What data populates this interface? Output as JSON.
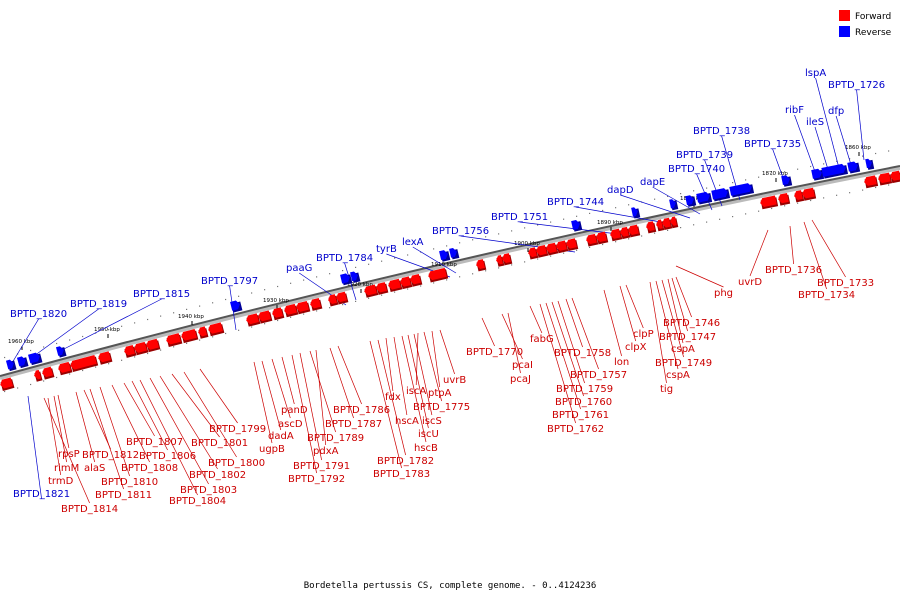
{
  "legend": {
    "forward_label": "Forward",
    "reverse_label": "Reverse",
    "forward_color": "#ff0000",
    "reverse_color": "#0000ff"
  },
  "caption": "Bordetella pertussis CS, complete genome. - 0..4124236",
  "ticks": [
    "1960 kbp",
    "1950 kbp",
    "1940 kbp",
    "1930 kbp",
    "1920 kbp",
    "1910 kbp",
    "1900 kbp",
    "1890 kbp",
    "1880 kbp",
    "1870 kbp",
    "1860 kbp"
  ],
  "reverse_genes": [
    "BPTD_1820",
    "BPTD_1819",
    "BPTD_1815",
    "BPTD_1797",
    "paaG",
    "BPTD_1784",
    "tyrB",
    "lexA",
    "BPTD_1756",
    "BPTD_1751",
    "BPTD_1744",
    "dapD",
    "dapE",
    "BPTD_1740",
    "BPTD_1739",
    "BPTD_1738",
    "BPTD_1735",
    "ribF",
    "ileS",
    "lspA",
    "dfp",
    "BPTD_1726",
    "BPTD_1821"
  ],
  "forward_genes": [
    "BPTD_1814",
    "trmD",
    "rimM",
    "rpsP",
    "alaS",
    "BPTD_1812",
    "BPTD_1811",
    "BPTD_1810",
    "BPTD_1808",
    "BPTD_1807",
    "BPTD_1806",
    "BPTD_1804",
    "BPTD_1803",
    "BPTD_1802",
    "BPTD_1801",
    "BPTD_1800",
    "BPTD_1799",
    "ugpB",
    "dadA",
    "ascD",
    "panD",
    "BPTD_1792",
    "BPTD_1791",
    "BPTD_1789",
    "pdxA",
    "BPTD_1787",
    "BPTD_1786",
    "BPTD_1783",
    "BPTD_1782",
    "fdx",
    "hscA",
    "hscB",
    "iscU",
    "iscS",
    "iscA",
    "BPTD_1775",
    "ptpA",
    "uvrB",
    "BPTD_1770",
    "pcaI",
    "pcaJ",
    "fabG",
    "BPTD_1762",
    "BPTD_1761",
    "BPTD_1760",
    "BPTD_1759",
    "BPTD_1758",
    "BPTD_1757",
    "lon",
    "clpX",
    "clpP",
    "tig",
    "cspA_1",
    "BPTD_1749",
    "cspA_2",
    "BPTD_1747",
    "BPTD_1746",
    "phg",
    "uvrD",
    "BPTD_1736",
    "BPTD_1734",
    "BPTD_1733"
  ],
  "gene_text": {
    "BPTD_1820": "BPTD_1820",
    "BPTD_1819": "BPTD_1819",
    "BPTD_1815": "BPTD_1815",
    "BPTD_1797": "BPTD_1797",
    "paaG": "paaG",
    "BPTD_1784": "BPTD_1784",
    "tyrB": "tyrB",
    "lexA": "lexA",
    "BPTD_1756": "BPTD_1756",
    "BPTD_1751": "BPTD_1751",
    "BPTD_1744": "BPTD_1744",
    "dapD": "dapD",
    "dapE": "dapE",
    "BPTD_1740": "BPTD_1740",
    "BPTD_1739": "BPTD_1739",
    "BPTD_1738": "BPTD_1738",
    "BPTD_1735": "BPTD_1735",
    "ribF": "ribF",
    "ileS": "ileS",
    "lspA": "lspA",
    "dfp": "dfp",
    "BPTD_1726": "BPTD_1726",
    "BPTD_1821": "BPTD_1821",
    "BPTD_1814": "BPTD_1814",
    "trmD": "trmD",
    "rimM": "rimM",
    "rpsP": "rpsP",
    "alaS": "alaS",
    "BPTD_1812": "BPTD_1812",
    "BPTD_1811": "BPTD_1811",
    "BPTD_1810": "BPTD_1810",
    "BPTD_1808": "BPTD_1808",
    "BPTD_1807": "BPTD_1807",
    "BPTD_1806": "BPTD_1806",
    "BPTD_1804": "BPTD_1804",
    "BPTD_1803": "BPTD_1803",
    "BPTD_1802": "BPTD_1802",
    "BPTD_1801": "BPTD_1801",
    "BPTD_1800": "BPTD_1800",
    "BPTD_1799": "BPTD_1799",
    "ugpB": "ugpB",
    "dadA": "dadA",
    "ascD": "ascD",
    "panD": "panD",
    "BPTD_1792": "BPTD_1792",
    "BPTD_1791": "BPTD_1791",
    "BPTD_1789": "BPTD_1789",
    "pdxA": "pdxA",
    "BPTD_1787": "BPTD_1787",
    "BPTD_1786": "BPTD_1786",
    "BPTD_1783": "BPTD_1783",
    "BPTD_1782": "BPTD_1782",
    "fdx": "fdx",
    "hscA": "hscA",
    "hscB": "hscB",
    "iscU": "iscU",
    "iscS": "iscS",
    "iscA": "iscA",
    "BPTD_1775": "BPTD_1775",
    "ptpA": "ptpA",
    "uvrB": "uvrB",
    "BPTD_1770": "BPTD_1770",
    "pcaI": "pcaI",
    "pcaJ": "pcaJ",
    "fabG": "fabG",
    "BPTD_1762": "BPTD_1762",
    "BPTD_1761": "BPTD_1761",
    "BPTD_1760": "BPTD_1760",
    "BPTD_1759": "BPTD_1759",
    "BPTD_1758": "BPTD_1758",
    "BPTD_1757": "BPTD_1757",
    "lon": "lon",
    "clpX": "clpX",
    "clpP": "clpP",
    "tig": "tig",
    "cspA_1": "cspA",
    "BPTD_1749": "BPTD_1749",
    "cspA_2": "cspA",
    "BPTD_1747": "BPTD_1747",
    "BPTD_1746": "BPTD_1746",
    "phg": "phg",
    "uvrD": "uvrD",
    "BPTD_1736": "BPTD_1736",
    "BPTD_1734": "BPTD_1734",
    "BPTD_1733": "BPTD_1733"
  }
}
